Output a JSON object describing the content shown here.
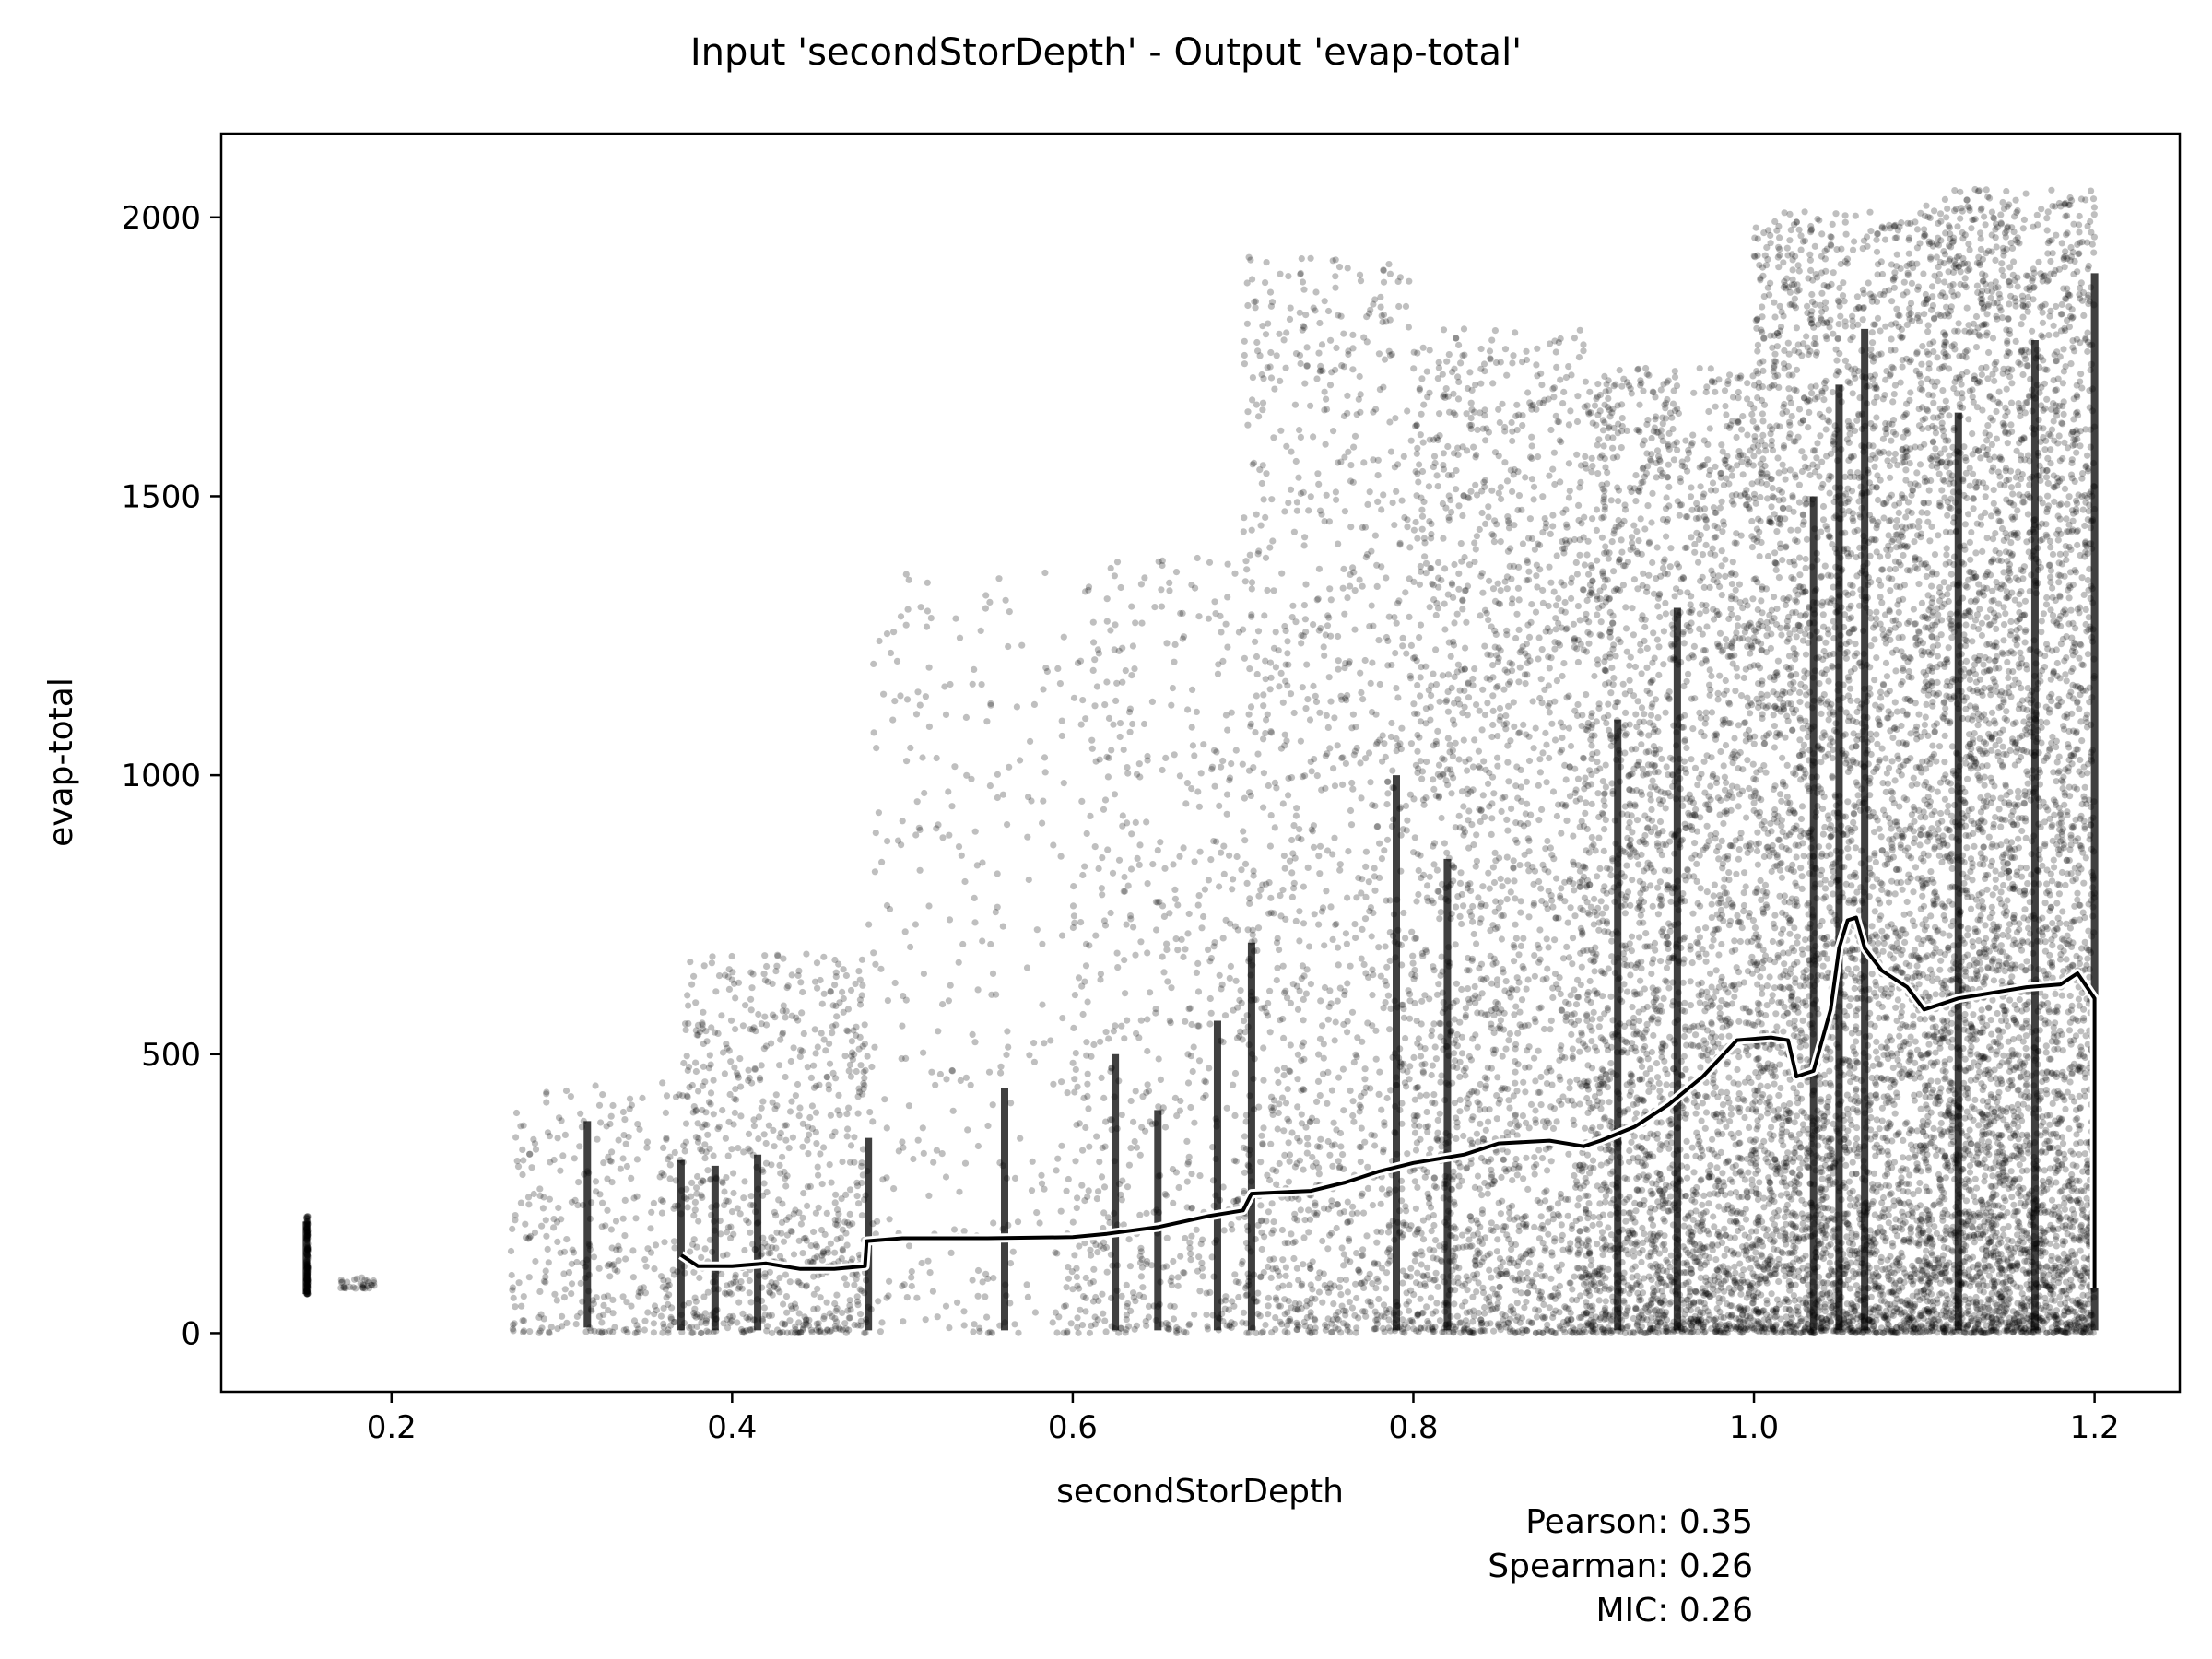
{
  "chart_data": {
    "type": "scatter",
    "title": "Input 'secondStorDepth' - Output 'evap-total'",
    "xlabel": "secondStorDepth",
    "ylabel": "evap-total",
    "xlim": [
      0.1,
      1.25
    ],
    "ylim": [
      -105,
      2150
    ],
    "xticks": [
      0.2,
      0.4,
      0.6,
      0.8,
      1.0,
      1.2
    ],
    "xtick_labels": [
      "0.2",
      "0.4",
      "0.6",
      "0.8",
      "1.0",
      "1.2"
    ],
    "yticks": [
      0,
      500,
      1000,
      1500,
      2000
    ],
    "ytick_labels": [
      "0",
      "500",
      "1000",
      "1500",
      "2000"
    ],
    "grid": false,
    "point_color": "#000000",
    "point_alpha": 0.25,
    "trend_line_color": "#000000",
    "trend_halo_color": "#ffffff",
    "scatter_bands": [
      {
        "x_from": 0.15,
        "x_to": 0.151,
        "y_low": 70,
        "y_high": 210,
        "weight": 1
      },
      {
        "x_from": 0.17,
        "x_to": 0.19,
        "y_low": 80,
        "y_high": 100,
        "weight": 0.2
      },
      {
        "x_from": 0.27,
        "x_to": 0.37,
        "y_low": 0,
        "y_high": 450,
        "weight": 2
      },
      {
        "x_from": 0.37,
        "x_to": 0.48,
        "y_low": 0,
        "y_high": 680,
        "weight": 5
      },
      {
        "x_from": 0.48,
        "x_to": 0.6,
        "y_low": 0,
        "y_high": 1370,
        "weight": 2
      },
      {
        "x_from": 0.6,
        "x_to": 0.7,
        "y_low": 0,
        "y_high": 1390,
        "weight": 4
      },
      {
        "x_from": 0.7,
        "x_to": 0.8,
        "y_low": 0,
        "y_high": 1930,
        "weight": 8
      },
      {
        "x_from": 0.8,
        "x_to": 0.9,
        "y_low": 0,
        "y_high": 1800,
        "weight": 12
      },
      {
        "x_from": 0.9,
        "x_to": 1.0,
        "y_low": 0,
        "y_high": 1730,
        "weight": 18
      },
      {
        "x_from": 1.0,
        "x_to": 1.1,
        "y_low": 0,
        "y_high": 2010,
        "weight": 24
      },
      {
        "x_from": 1.1,
        "x_to": 1.2,
        "y_low": 0,
        "y_high": 2050,
        "weight": 28
      }
    ],
    "vertical_streaks": [
      {
        "x": 0.15,
        "y_low": 70,
        "y_high": 200
      },
      {
        "x": 0.315,
        "y_low": 10,
        "y_high": 380
      },
      {
        "x": 0.37,
        "y_low": 5,
        "y_high": 310
      },
      {
        "x": 0.39,
        "y_low": 5,
        "y_high": 300
      },
      {
        "x": 0.415,
        "y_low": 5,
        "y_high": 320
      },
      {
        "x": 0.48,
        "y_low": 5,
        "y_high": 350
      },
      {
        "x": 0.56,
        "y_low": 5,
        "y_high": 440
      },
      {
        "x": 0.625,
        "y_low": 5,
        "y_high": 500
      },
      {
        "x": 0.65,
        "y_low": 5,
        "y_high": 400
      },
      {
        "x": 0.685,
        "y_low": 5,
        "y_high": 560
      },
      {
        "x": 0.705,
        "y_low": 5,
        "y_high": 700
      },
      {
        "x": 0.79,
        "y_low": 5,
        "y_high": 1000
      },
      {
        "x": 0.82,
        "y_low": 5,
        "y_high": 850
      },
      {
        "x": 0.92,
        "y_low": 5,
        "y_high": 1100
      },
      {
        "x": 0.955,
        "y_low": 5,
        "y_high": 1300
      },
      {
        "x": 1.035,
        "y_low": 5,
        "y_high": 1500
      },
      {
        "x": 1.05,
        "y_low": 5,
        "y_high": 1700
      },
      {
        "x": 1.065,
        "y_low": 5,
        "y_high": 1800
      },
      {
        "x": 1.12,
        "y_low": 5,
        "y_high": 1650
      },
      {
        "x": 1.165,
        "y_low": 5,
        "y_high": 1780
      },
      {
        "x": 1.2,
        "y_low": 5,
        "y_high": 1900
      }
    ],
    "trend_line": {
      "x": [
        0.37,
        0.38,
        0.4,
        0.42,
        0.44,
        0.46,
        0.478,
        0.479,
        0.5,
        0.55,
        0.6,
        0.62,
        0.65,
        0.68,
        0.7,
        0.705,
        0.74,
        0.76,
        0.78,
        0.8,
        0.83,
        0.85,
        0.88,
        0.9,
        0.91,
        0.93,
        0.95,
        0.97,
        0.99,
        1.01,
        1.02,
        1.025,
        1.035,
        1.045,
        1.05,
        1.055,
        1.06,
        1.065,
        1.075,
        1.09,
        1.1,
        1.11,
        1.12,
        1.14,
        1.16,
        1.18,
        1.19,
        1.2,
        1.2
      ],
      "y": [
        140,
        120,
        120,
        125,
        115,
        115,
        120,
        165,
        170,
        170,
        172,
        178,
        190,
        210,
        220,
        250,
        255,
        270,
        290,
        305,
        320,
        340,
        345,
        335,
        345,
        370,
        410,
        460,
        525,
        530,
        525,
        460,
        470,
        580,
        690,
        740,
        745,
        690,
        650,
        620,
        580,
        590,
        600,
        610,
        620,
        625,
        645,
        600,
        80
      ]
    },
    "annotations": [
      "Pearson: 0.35",
      "Spearman: 0.26",
      "MIC: 0.26"
    ]
  }
}
